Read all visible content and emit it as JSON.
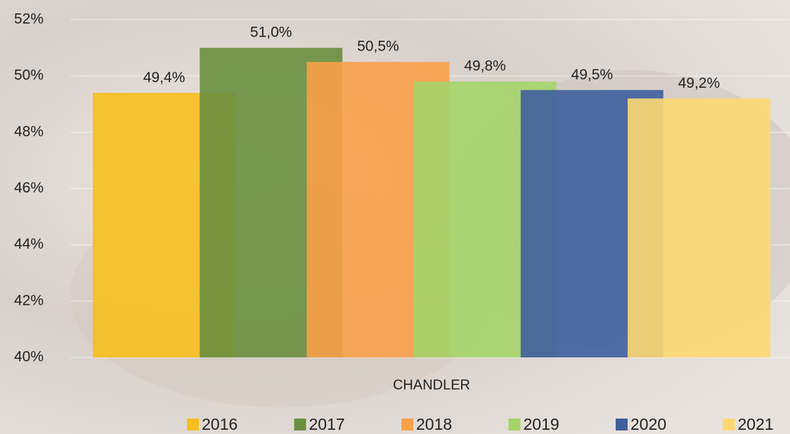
{
  "chart_data": {
    "type": "bar",
    "categories": [
      "CHANDLER"
    ],
    "series": [
      {
        "name": "2016",
        "color": "#f7bf1e",
        "values": [
          49.4
        ],
        "value_labels": [
          "49,4%"
        ]
      },
      {
        "name": "2017",
        "color": "#6a8f3f",
        "values": [
          51.0
        ],
        "value_labels": [
          "51,0%"
        ]
      },
      {
        "name": "2018",
        "color": "#f9a04a",
        "values": [
          50.5
        ],
        "value_labels": [
          "50,5%"
        ]
      },
      {
        "name": "2019",
        "color": "#a5d46a",
        "values": [
          49.8
        ],
        "value_labels": [
          "49,8%"
        ]
      },
      {
        "name": "2020",
        "color": "#3f5f9e",
        "values": [
          49.5
        ],
        "value_labels": [
          "49,5%"
        ]
      },
      {
        "name": "2021",
        "color": "#fcd872",
        "values": [
          49.2
        ],
        "value_labels": [
          "49,2%"
        ]
      }
    ],
    "ylim": [
      40,
      52
    ],
    "yticks": [
      {
        "value": 40,
        "label": "40%"
      },
      {
        "value": 42,
        "label": "42%"
      },
      {
        "value": 44,
        "label": "44%"
      },
      {
        "value": 46,
        "label": "46%"
      },
      {
        "value": 48,
        "label": "48%"
      },
      {
        "value": 50,
        "label": "50%"
      },
      {
        "value": 52,
        "label": "52%"
      }
    ],
    "grid": true,
    "legend": "bottom"
  }
}
